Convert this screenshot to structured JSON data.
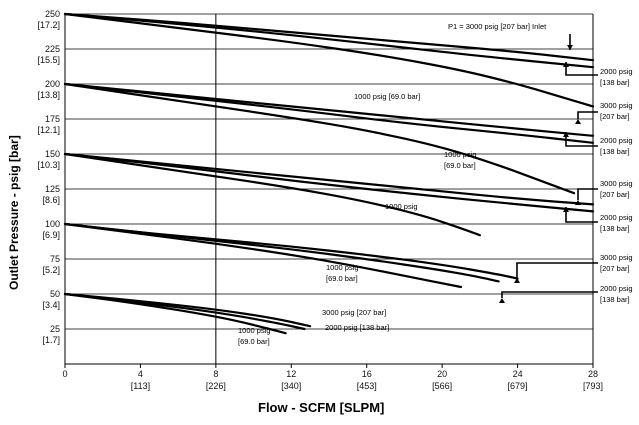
{
  "chart_data": {
    "type": "line",
    "xlabel": "Flow - SCFM [SLPM]",
    "ylabel": "Outlet Pressure - psig [bar]",
    "xlim": [
      0,
      28
    ],
    "ylim": [
      0,
      250
    ],
    "grid": "horizontal",
    "x_ticks": [
      {
        "value": 0,
        "label": "0",
        "sub": ""
      },
      {
        "value": 4,
        "label": "4",
        "sub": "[113]"
      },
      {
        "value": 8,
        "label": "8",
        "sub": "[226]"
      },
      {
        "value": 12,
        "label": "12",
        "sub": "[340]"
      },
      {
        "value": 16,
        "label": "16",
        "sub": "[453]"
      },
      {
        "value": 20,
        "label": "20",
        "sub": "[566]"
      },
      {
        "value": 24,
        "label": "24",
        "sub": "[679]"
      },
      {
        "value": 28,
        "label": "28",
        "sub": "[793]"
      }
    ],
    "y_ticks": [
      {
        "value": 250,
        "label": "250",
        "sub": "[17.2]"
      },
      {
        "value": 225,
        "label": "225",
        "sub": "[15.5]"
      },
      {
        "value": 200,
        "label": "200",
        "sub": "[13.8]"
      },
      {
        "value": 175,
        "label": "175",
        "sub": "[12.1]"
      },
      {
        "value": 150,
        "label": "150",
        "sub": "[10.3]"
      },
      {
        "value": 125,
        "label": "125",
        "sub": "[8.6]"
      },
      {
        "value": 100,
        "label": "100",
        "sub": "[6.9]"
      },
      {
        "value": 75,
        "label": "75",
        "sub": "[5.2]"
      },
      {
        "value": 50,
        "label": "50",
        "sub": "[3.4]"
      },
      {
        "value": 25,
        "label": "25",
        "sub": "[1.7]"
      }
    ],
    "reference_line_x": 8,
    "inlet_title": "P1 = 3000 psig [207 bar] Inlet",
    "series": [
      {
        "group": "250",
        "inlet": "3000",
        "points": [
          [
            0,
            250
          ],
          [
            6,
            244
          ],
          [
            12,
            237
          ],
          [
            18,
            230
          ],
          [
            24,
            223
          ],
          [
            28,
            217
          ]
        ]
      },
      {
        "group": "250",
        "inlet": "2000",
        "points": [
          [
            0,
            250
          ],
          [
            6,
            243
          ],
          [
            12,
            235
          ],
          [
            18,
            226
          ],
          [
            22,
            220
          ],
          [
            28,
            212
          ]
        ]
      },
      {
        "group": "250",
        "inlet": "1000",
        "points": [
          [
            0,
            250
          ],
          [
            6,
            240
          ],
          [
            12,
            230
          ],
          [
            17,
            220
          ],
          [
            21,
            210
          ],
          [
            24,
            200
          ],
          [
            26,
            192
          ],
          [
            28,
            184
          ]
        ]
      },
      {
        "group": "200",
        "inlet": "3000",
        "points": [
          [
            0,
            200
          ],
          [
            6,
            192
          ],
          [
            12,
            184
          ],
          [
            18,
            176
          ],
          [
            24,
            168
          ],
          [
            28,
            163
          ]
        ]
      },
      {
        "group": "200",
        "inlet": "2000",
        "points": [
          [
            0,
            200
          ],
          [
            6,
            191
          ],
          [
            12,
            182
          ],
          [
            18,
            172
          ],
          [
            24,
            164
          ],
          [
            28,
            158
          ]
        ]
      },
      {
        "group": "200",
        "inlet": "1000",
        "points": [
          [
            0,
            200
          ],
          [
            6,
            188
          ],
          [
            12,
            176
          ],
          [
            16,
            167
          ],
          [
            20,
            155
          ],
          [
            23,
            142
          ],
          [
            25,
            132
          ],
          [
            27,
            122
          ]
        ]
      },
      {
        "group": "150",
        "inlet": "3000",
        "points": [
          [
            0,
            150
          ],
          [
            6,
            142
          ],
          [
            12,
            134
          ],
          [
            18,
            126
          ],
          [
            24,
            118
          ],
          [
            28,
            114
          ]
        ]
      },
      {
        "group": "150",
        "inlet": "2000",
        "points": [
          [
            0,
            150
          ],
          [
            6,
            141
          ],
          [
            12,
            131
          ],
          [
            18,
            122
          ],
          [
            24,
            114
          ],
          [
            28,
            109
          ]
        ]
      },
      {
        "group": "150",
        "inlet": "1000",
        "points": [
          [
            0,
            150
          ],
          [
            6,
            138
          ],
          [
            12,
            126
          ],
          [
            16,
            116
          ],
          [
            19,
            106
          ],
          [
            21,
            97
          ],
          [
            22,
            92
          ]
        ]
      },
      {
        "group": "100",
        "inlet": "3000",
        "points": [
          [
            0,
            100
          ],
          [
            4,
            94
          ],
          [
            8,
            89
          ],
          [
            12,
            84
          ],
          [
            16,
            78
          ],
          [
            20,
            71
          ],
          [
            23,
            64
          ],
          [
            24,
            61
          ]
        ]
      },
      {
        "group": "100",
        "inlet": "2000",
        "points": [
          [
            0,
            100
          ],
          [
            4,
            94
          ],
          [
            8,
            88
          ],
          [
            12,
            82
          ],
          [
            16,
            75
          ],
          [
            20,
            67
          ],
          [
            22,
            62
          ],
          [
            23,
            59
          ]
        ]
      },
      {
        "group": "100",
        "inlet": "1000",
        "points": [
          [
            0,
            100
          ],
          [
            4,
            93
          ],
          [
            8,
            86
          ],
          [
            12,
            78
          ],
          [
            15,
            71
          ],
          [
            18,
            63
          ],
          [
            21,
            55
          ]
        ]
      },
      {
        "group": "50",
        "inlet": "3000",
        "points": [
          [
            0,
            50
          ],
          [
            4,
            45
          ],
          [
            8,
            39
          ],
          [
            11,
            33
          ],
          [
            13,
            27
          ]
        ]
      },
      {
        "group": "50",
        "inlet": "2000",
        "points": [
          [
            0,
            50
          ],
          [
            4,
            44
          ],
          [
            8,
            37
          ],
          [
            11,
            30
          ],
          [
            12.7,
            25
          ]
        ]
      },
      {
        "group": "50",
        "inlet": "1000",
        "points": [
          [
            0,
            50
          ],
          [
            4,
            43
          ],
          [
            8,
            34
          ],
          [
            10,
            28
          ],
          [
            11.7,
            22
          ]
        ]
      }
    ],
    "labels": {
      "l250_2000": [
        "2000 psig",
        "[138 bar]"
      ],
      "l200_3000": [
        "3000 psig",
        "[207 bar]"
      ],
      "l200_2000": [
        "2000 psig",
        "[138 bar]"
      ],
      "l200_1000": "1000 psig [69.0 bar]",
      "l150_1000": [
        "1000 psig",
        "[69.0 bar]"
      ],
      "l150_3000": [
        "3000 psig",
        "[207 bar]"
      ],
      "l150_2000": [
        "2000 psig",
        "[138 bar]"
      ],
      "l100_1000a": [
        "1000 psig",
        "[69.0 bar]"
      ],
      "l100_3000": [
        "3000 psig",
        "[207 bar]"
      ],
      "l100_2000": [
        "2000 psig",
        "[138 bar]"
      ],
      "l50_3000": "3000 psig [207 bar]",
      "l50_2000": "2000 psig [138 bar]",
      "l50_1000": [
        "1000 psig",
        "[69.0 bar]"
      ]
    }
  }
}
